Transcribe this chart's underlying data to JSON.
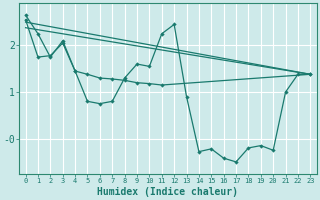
{
  "xlabel": "Humidex (Indice chaleur)",
  "background_color": "#ceeaea",
  "grid_color": "#b0d8d8",
  "line_color": "#1a7a6e",
  "red_line_color": "#cc6666",
  "xlim": [
    -0.5,
    23.5
  ],
  "ylim": [
    -0.75,
    2.9
  ],
  "yticks": [
    0,
    1,
    2
  ],
  "ytick_labels": [
    "-0",
    "1",
    "2"
  ],
  "xticks": [
    0,
    1,
    2,
    3,
    4,
    5,
    6,
    7,
    8,
    9,
    10,
    11,
    12,
    13,
    14,
    15,
    16,
    17,
    18,
    19,
    20,
    21,
    22,
    23
  ],
  "line1_x": [
    0,
    1,
    2,
    3,
    4,
    5,
    6,
    7,
    8,
    9,
    10,
    11,
    12,
    13,
    14,
    15,
    16,
    17,
    18,
    19,
    20,
    21,
    22,
    23
  ],
  "line1_y": [
    2.65,
    2.25,
    1.75,
    2.1,
    1.45,
    0.8,
    0.75,
    0.8,
    1.3,
    1.6,
    1.55,
    2.25,
    2.45,
    0.9,
    -0.28,
    -0.22,
    -0.42,
    -0.5,
    -0.2,
    -0.15,
    -0.25,
    1.0,
    1.38,
    1.38
  ],
  "line2_x": [
    0,
    1,
    2,
    3,
    4,
    5,
    6,
    7,
    8,
    9,
    10,
    11,
    23
  ],
  "line2_y": [
    2.55,
    1.75,
    1.78,
    2.05,
    1.45,
    1.38,
    1.3,
    1.28,
    1.25,
    1.2,
    1.18,
    1.15,
    1.38
  ],
  "line3_x": [
    0,
    23
  ],
  "line3_y": [
    2.5,
    1.38
  ],
  "line4_x": [
    0,
    23
  ],
  "line4_y": [
    2.38,
    1.38
  ]
}
